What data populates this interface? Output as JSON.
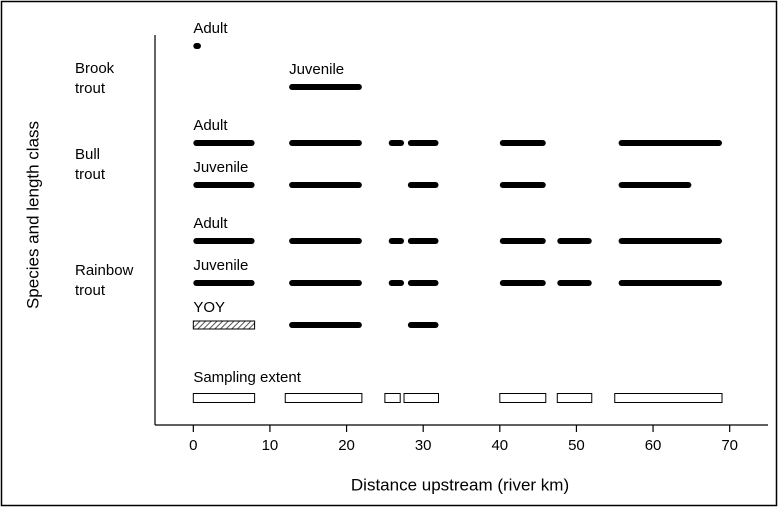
{
  "chart_data": {
    "type": "range",
    "x_label": "Distance upstream (river km)",
    "y_label": "Species and length class",
    "xlim": [
      -5,
      75
    ],
    "xticks": [
      0,
      10,
      20,
      30,
      40,
      50,
      60,
      70
    ],
    "color": "#000000",
    "groups": [
      {
        "label": [
          "Brook",
          "trout"
        ],
        "rows": [
          {
            "name": "Adult",
            "segments": [
              {
                "start": 0,
                "end": 1
              }
            ]
          },
          {
            "name": "Juvenile",
            "segments": [
              {
                "start": 12.5,
                "end": 22
              }
            ]
          }
        ]
      },
      {
        "label": [
          "Bull",
          "trout"
        ],
        "rows": [
          {
            "name": "Adult",
            "segments": [
              {
                "start": 0,
                "end": 8
              },
              {
                "start": 12.5,
                "end": 22
              },
              {
                "start": 25.5,
                "end": 27.5
              },
              {
                "start": 28,
                "end": 32
              },
              {
                "start": 40,
                "end": 46
              },
              {
                "start": 55.5,
                "end": 69
              }
            ]
          },
          {
            "name": "Juvenile",
            "segments": [
              {
                "start": 0,
                "end": 8
              },
              {
                "start": 12.5,
                "end": 22
              },
              {
                "start": 28,
                "end": 32
              },
              {
                "start": 40,
                "end": 46
              },
              {
                "start": 55.5,
                "end": 65
              }
            ]
          }
        ]
      },
      {
        "label": [
          "Rainbow",
          "trout"
        ],
        "rows": [
          {
            "name": "Adult",
            "segments": [
              {
                "start": 0,
                "end": 8
              },
              {
                "start": 12.5,
                "end": 22
              },
              {
                "start": 25.5,
                "end": 27.5
              },
              {
                "start": 28,
                "end": 32
              },
              {
                "start": 40,
                "end": 46
              },
              {
                "start": 47.5,
                "end": 52
              },
              {
                "start": 55.5,
                "end": 69
              }
            ]
          },
          {
            "name": "Juvenile",
            "segments": [
              {
                "start": 0,
                "end": 8
              },
              {
                "start": 12.5,
                "end": 22
              },
              {
                "start": 25.5,
                "end": 27.5
              },
              {
                "start": 28,
                "end": 32
              },
              {
                "start": 40,
                "end": 46
              },
              {
                "start": 47.5,
                "end": 52
              },
              {
                "start": 55.5,
                "end": 69
              }
            ]
          },
          {
            "name": "YOY",
            "segments": [
              {
                "start": 0,
                "end": 8,
                "style": "hatched"
              },
              {
                "start": 12.5,
                "end": 22
              },
              {
                "start": 28,
                "end": 32
              }
            ]
          }
        ]
      }
    ],
    "sampling": {
      "name": "Sampling extent",
      "style": "outline",
      "segments": [
        {
          "start": 0,
          "end": 8
        },
        {
          "start": 12,
          "end": 22
        },
        {
          "start": 25,
          "end": 27
        },
        {
          "start": 27.5,
          "end": 32
        },
        {
          "start": 40,
          "end": 46
        },
        {
          "start": 47.5,
          "end": 52
        },
        {
          "start": 55,
          "end": 69
        }
      ]
    }
  }
}
